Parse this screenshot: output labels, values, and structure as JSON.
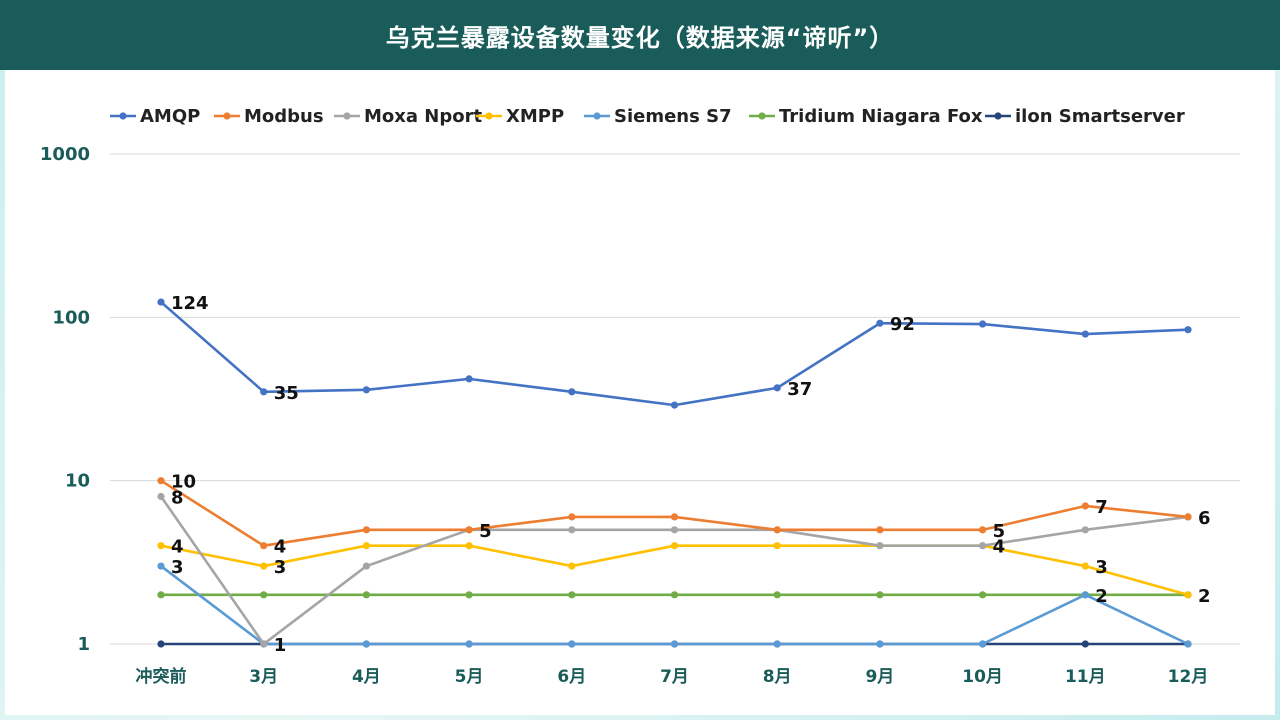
{
  "title": "乌克兰暴露设备数量变化（数据来源“谛听”）",
  "chart_data": {
    "type": "line",
    "yscale": "log",
    "ylim": [
      1,
      1000
    ],
    "yticks": [
      "1",
      "10",
      "100",
      "1000"
    ],
    "ytick_values": [
      1,
      10,
      100,
      1000
    ],
    "categories": [
      "冲突前",
      "3月",
      "4月",
      "5月",
      "6月",
      "7月",
      "8月",
      "9月",
      "10月",
      "11月",
      "12月"
    ],
    "series": [
      {
        "name": "AMQP",
        "color": "#4472c4",
        "values": [
          124,
          35,
          36,
          42,
          35,
          29,
          37,
          92,
          91,
          79,
          84
        ]
      },
      {
        "name": "Modbus",
        "color": "#ed7d31",
        "values": [
          10,
          4,
          5,
          5,
          6,
          6,
          5,
          5,
          5,
          7,
          6
        ]
      },
      {
        "name": "Moxa Nport",
        "color": "#a5a5a5",
        "values": [
          8,
          1,
          3,
          5,
          5,
          5,
          5,
          4,
          4,
          5,
          6
        ]
      },
      {
        "name": "XMPP",
        "color": "#ffc000",
        "values": [
          4,
          3,
          4,
          4,
          3,
          4,
          4,
          4,
          4,
          3,
          2
        ]
      },
      {
        "name": "Siemens S7",
        "color": "#5b9bd5",
        "values": [
          3,
          1,
          1,
          1,
          1,
          1,
          1,
          1,
          1,
          2,
          1
        ]
      },
      {
        "name": "Tridium Niagara Fox",
        "color": "#70ad47",
        "values": [
          2,
          2,
          2,
          2,
          2,
          2,
          2,
          2,
          2,
          2,
          2
        ]
      },
      {
        "name": "ilon Smartserver",
        "color": "#264478",
        "values": [
          1,
          1,
          1,
          1,
          1,
          1,
          1,
          1,
          1,
          1,
          1
        ]
      }
    ],
    "data_labels": [
      {
        "series": 0,
        "index": 0,
        "text": "124"
      },
      {
        "series": 0,
        "index": 1,
        "text": "35"
      },
      {
        "series": 0,
        "index": 6,
        "text": "37"
      },
      {
        "series": 0,
        "index": 7,
        "text": "92"
      },
      {
        "series": 1,
        "index": 0,
        "text": "10"
      },
      {
        "series": 2,
        "index": 0,
        "text": "8"
      },
      {
        "series": 3,
        "index": 0,
        "text": "4"
      },
      {
        "series": 4,
        "index": 0,
        "text": "3"
      },
      {
        "series": 1,
        "index": 1,
        "text": "4"
      },
      {
        "series": 3,
        "index": 1,
        "text": "3"
      },
      {
        "series": 2,
        "index": 1,
        "text": "1"
      },
      {
        "series": 2,
        "index": 3,
        "text": "5"
      },
      {
        "series": 1,
        "index": 8,
        "text": "5"
      },
      {
        "series": 3,
        "index": 8,
        "text": "4"
      },
      {
        "series": 1,
        "index": 9,
        "text": "7"
      },
      {
        "series": 3,
        "index": 9,
        "text": "3"
      },
      {
        "series": 4,
        "index": 9,
        "text": "2"
      },
      {
        "series": 2,
        "index": 10,
        "text": "6"
      },
      {
        "series": 3,
        "index": 10,
        "text": "2"
      }
    ],
    "legend_position": "top",
    "grid": true
  }
}
